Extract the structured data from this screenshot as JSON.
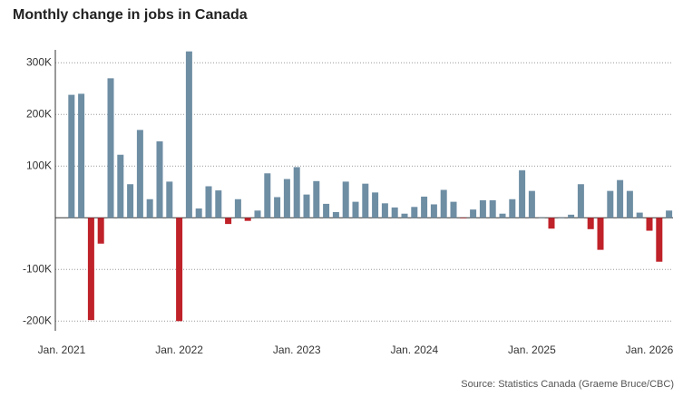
{
  "chart_data": {
    "type": "bar",
    "title": "Monthly change in jobs in Canada",
    "source": "Source: Statistics Canada (Graeme Bruce/CBC)",
    "categories": [
      "Jan. 2021",
      null,
      null,
      null,
      null,
      null,
      null,
      null,
      null,
      null,
      null,
      null,
      "Jan. 2022",
      null,
      null,
      null,
      null,
      null,
      null,
      null,
      null,
      null,
      null,
      null,
      "Jan. 2023",
      null,
      null,
      null,
      null,
      null,
      null,
      null,
      null,
      null,
      null,
      null,
      "Jan. 2024",
      null,
      null,
      null,
      null,
      null,
      null,
      null,
      null,
      null,
      null,
      null,
      "Jan. 2025",
      null,
      null,
      null,
      null,
      null,
      null,
      null,
      null,
      null,
      null,
      null,
      "Jan. 2026",
      null,
      null
    ],
    "values": [
      null,
      238000,
      240000,
      -198000,
      -50000,
      270000,
      122000,
      65000,
      170000,
      36000,
      148000,
      70000,
      -200000,
      322000,
      18000,
      61000,
      53000,
      -12000,
      36000,
      -6000,
      14000,
      86000,
      40000,
      75000,
      98000,
      45000,
      71000,
      27000,
      11000,
      70000,
      31000,
      66000,
      49000,
      28000,
      20000,
      8000,
      21000,
      41000,
      26000,
      54000,
      31000,
      -1000,
      16000,
      34000,
      34000,
      8000,
      36000,
      92000,
      52000,
      1000,
      -21000,
      1000,
      6000,
      65000,
      -22000,
      -62000,
      52000,
      73000,
      52000,
      10000,
      -25000,
      -85000,
      14000
    ],
    "color": "#6e8ea4",
    "negative_color": "#c0222a",
    "ylim": [
      -210000,
      325000
    ],
    "yticks": [
      {
        "value": -200000,
        "label": "-200K"
      },
      {
        "value": -100000,
        "label": "-100K"
      },
      {
        "value": 100000,
        "label": "100K"
      },
      {
        "value": 200000,
        "label": "200K"
      },
      {
        "value": 300000,
        "label": "300K"
      }
    ],
    "grid": true
  }
}
